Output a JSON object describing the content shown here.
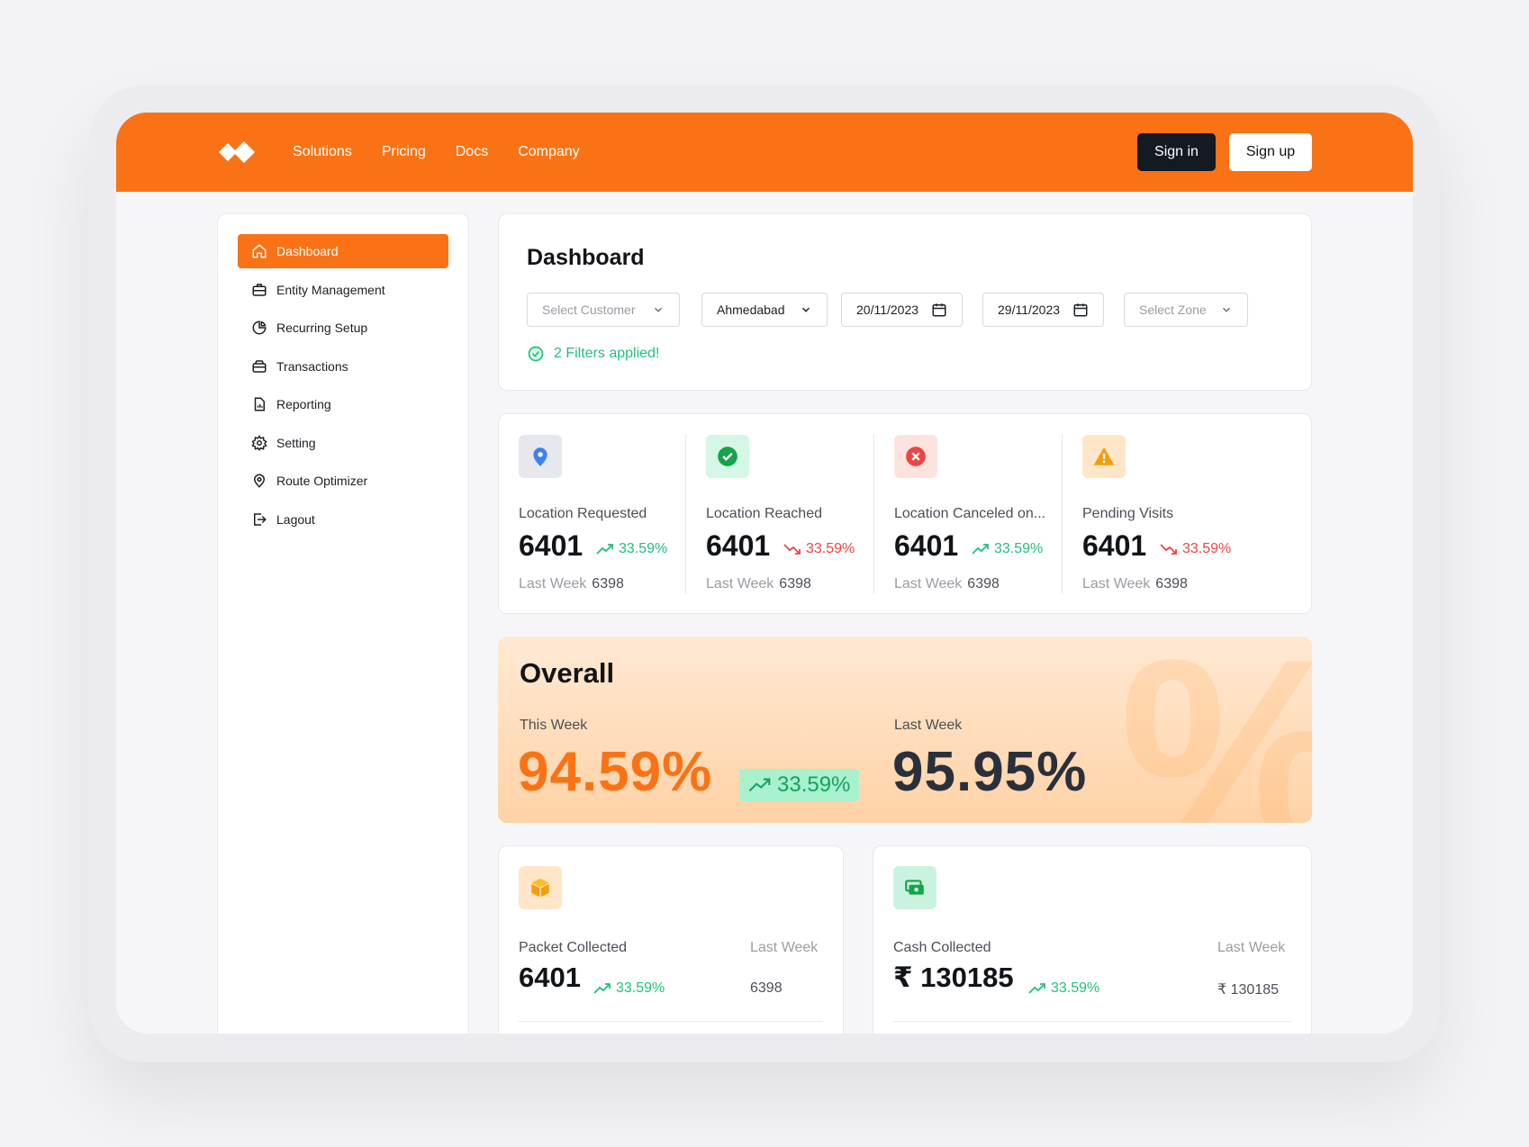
{
  "nav": {
    "links": [
      "Solutions",
      "Pricing",
      "Docs",
      "Company"
    ],
    "signin": "Sign in",
    "signup": "Sign up"
  },
  "sidebar": {
    "items": [
      {
        "label": "Dashboard",
        "icon": "home-icon",
        "active": true
      },
      {
        "label": "Entity Management",
        "icon": "briefcase-icon"
      },
      {
        "label": "Recurring Setup",
        "icon": "pie-chart-icon"
      },
      {
        "label": "Transactions",
        "icon": "wallet-icon"
      },
      {
        "label": "Reporting",
        "icon": "report-icon"
      },
      {
        "label": "Setting",
        "icon": "gear-icon"
      },
      {
        "label": "Route Optimizer",
        "icon": "location-pin-icon"
      },
      {
        "label": "Lagout",
        "icon": "logout-icon"
      }
    ]
  },
  "filters": {
    "title": "Dashboard",
    "customer_placeholder": "Select Customer",
    "city": "Ahmedabad",
    "start_date": "20/11/2023",
    "end_date": "29/11/2023",
    "zone_placeholder": "Select Zone",
    "applied": "2 Filters applied!"
  },
  "stats": [
    {
      "label": "Location Requested",
      "value": "6401",
      "trend": "33.59%",
      "direction": "up",
      "last_week_label": "Last Week",
      "last_week": "6398",
      "icon": "map-pin-icon",
      "icon_color": "#3b82f6",
      "bg": "#e6e8ee"
    },
    {
      "label": "Location Reached",
      "value": "6401",
      "trend": "33.59%",
      "direction": "down",
      "last_week_label": "Last Week",
      "last_week": "6398",
      "icon": "check-circle-icon",
      "icon_color": "#16a34a",
      "bg": "#d4f7e6"
    },
    {
      "label": "Location Canceled on...",
      "value": "6401",
      "trend": "33.59%",
      "direction": "up",
      "last_week_label": "Last Week",
      "last_week": "6398",
      "icon": "x-circle-icon",
      "icon_color": "#ef4444",
      "bg": "#fde3de"
    },
    {
      "label": "Pending Visits",
      "value": "6401",
      "trend": "33.59%",
      "direction": "down",
      "last_week_label": "Last Week",
      "last_week": "6398",
      "icon": "warning-icon",
      "icon_color": "#f59e0b",
      "bg": "#ffe6c8"
    }
  ],
  "overall": {
    "title": "Overall",
    "this_week_label": "This Week",
    "this_week": "94.59%",
    "trend": "33.59%",
    "last_week_label": "Last Week",
    "last_week": "95.95%"
  },
  "packet": {
    "label": "Packet Collected",
    "last_week_label": "Last Week",
    "value": "6401",
    "trend": "33.59%",
    "last_week": "6398",
    "icon": "box-icon"
  },
  "cash": {
    "label": "Cash Collected",
    "last_week_label": "Last Week",
    "value": "₹ 130185",
    "trend": "33.59%",
    "last_week": "₹ 130185",
    "icon": "cash-icon"
  },
  "colors": {
    "accent": "#f97316",
    "success": "#22c07a",
    "danger": "#ef4444"
  }
}
